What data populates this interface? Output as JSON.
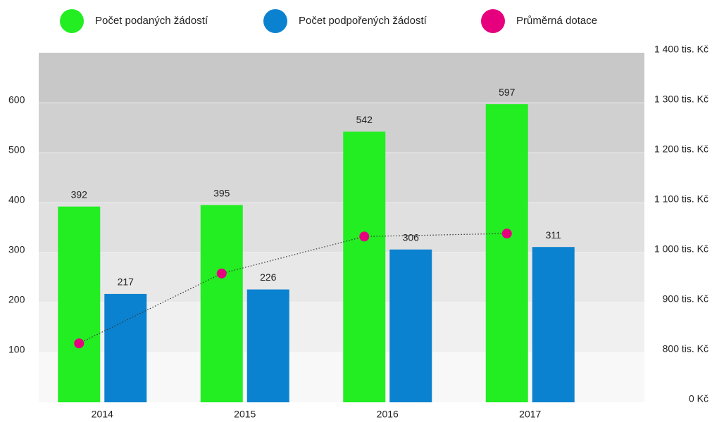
{
  "chart_data": {
    "type": "bar",
    "categories": [
      "2014",
      "2015",
      "2016",
      "2017"
    ],
    "series": [
      {
        "name": "Počet podaných žádostí",
        "color": "#22ee22",
        "values": [
          392,
          395,
          542,
          597
        ]
      },
      {
        "name": "Počet podpořených žádostí",
        "color": "#0a82d0",
        "values": [
          217,
          226,
          306,
          311
        ]
      },
      {
        "name": "Průměrná dotace",
        "color": "#e6007e",
        "type": "line",
        "axis": "y2",
        "values": [
          818,
          958,
          1032,
          1038
        ]
      }
    ],
    "ylim": [
      0,
      700
    ],
    "yticks": [
      100,
      200,
      300,
      400,
      500,
      600
    ],
    "y2lim": [
      700,
      1400
    ],
    "y2_axis_break": true,
    "y2ticks": [
      {
        "value": 0,
        "label": "0 Kč"
      },
      {
        "value": 800,
        "label": "800 tis. Kč"
      },
      {
        "value": 900,
        "label": "900 tis. Kč"
      },
      {
        "value": 1000,
        "label": "1 000 tis. Kč"
      },
      {
        "value": 1100,
        "label": "1 100 tis. Kč"
      },
      {
        "value": 1200,
        "label": "1 200 tis. Kč"
      },
      {
        "value": 1300,
        "label": "1 300 tis. Kč"
      },
      {
        "value": 1400,
        "label": "1 400 tis. Kč"
      }
    ],
    "legend": "top"
  }
}
